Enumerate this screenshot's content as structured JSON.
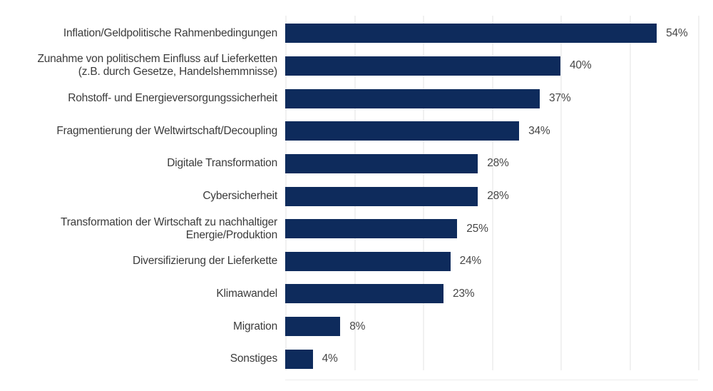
{
  "chart_data": {
    "type": "bar",
    "orientation": "horizontal",
    "title": "",
    "xlabel": "",
    "ylabel": "",
    "categories": [
      "Inflation/Geldpolitische Rahmenbedingungen",
      "Zunahme von politischem Einfluss auf Lieferketten\n(z.B. durch Gesetze, Handelshemmnisse)",
      "Rohstoff- und Energieversorgungssicherheit",
      "Fragmentierung der Weltwirtschaft/Decoupling",
      "Digitale Transformation",
      "Cybersicherheit",
      "Transformation der Wirtschaft zu nachhaltiger\nEnergie/Produktion",
      "Diversifizierung der Lieferkette",
      "Klimawandel",
      "Migration",
      "Sonstiges"
    ],
    "values": [
      54,
      40,
      37,
      34,
      28,
      28,
      25,
      24,
      23,
      8,
      4
    ],
    "value_labels": [
      "54%",
      "40%",
      "37%",
      "34%",
      "28%",
      "28%",
      "25%",
      "24%",
      "23%",
      "8%",
      "4%"
    ],
    "xlim": [
      0,
      60
    ],
    "gridlines": {
      "axis": "x",
      "interval": 10,
      "count": 7,
      "visible": true
    },
    "tick_labels_visible": false,
    "legend": "none",
    "colors": {
      "bar": "#0e2b5c",
      "category_label": "#3b3b3b",
      "value_label": "#464646",
      "gridline": "#f1f1f1",
      "background": "#ffffff"
    }
  }
}
